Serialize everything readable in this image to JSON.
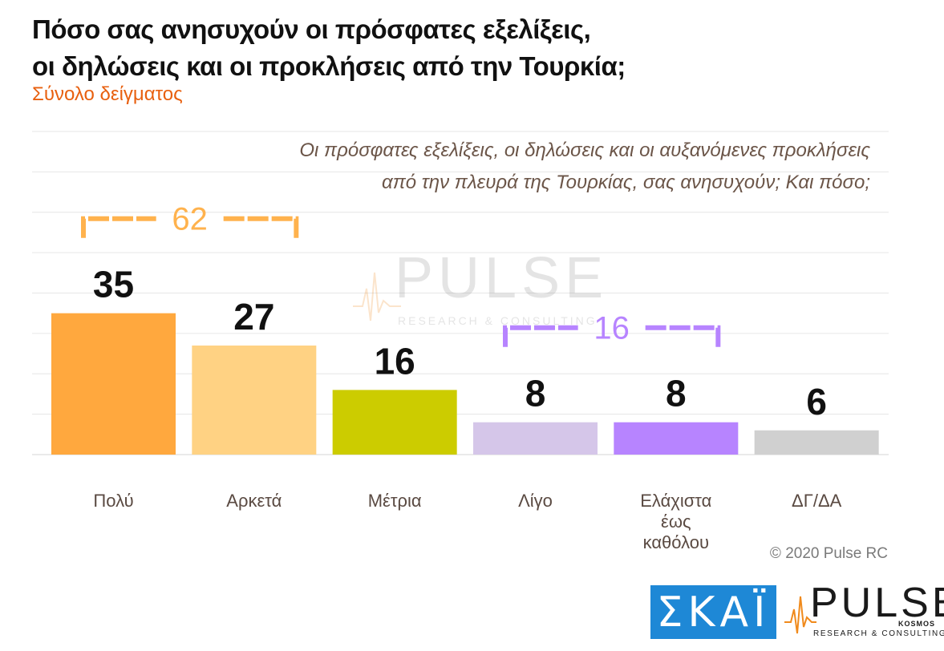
{
  "header": {
    "title_line1": "Πόσο σας ανησυχούν οι πρόσφατες εξελίξεις,",
    "title_line2": "οι δηλώσεις και οι προκλήσεις από την Τουρκία;",
    "subtitle": "Σύνολο δείγματος"
  },
  "question": {
    "line1": "Οι πρόσφατες εξελίξεις, οι δηλώσεις και οι αυξανόμενες προκλήσεις",
    "line2": "από την πλευρά της Τουρκίας, σας ανησυχούν; Και πόσο;"
  },
  "chart_data": {
    "type": "bar",
    "categories": [
      [
        "Πολύ"
      ],
      [
        "Αρκετά"
      ],
      [
        "Μέτρια"
      ],
      [
        "Λίγο"
      ],
      [
        "Ελάχιστα",
        "έως",
        "καθόλου"
      ],
      [
        "ΔΓ/ΔΑ"
      ]
    ],
    "values": [
      35,
      27,
      16,
      8,
      8,
      6
    ],
    "colors": [
      "#ffa83e",
      "#ffd283",
      "#cccc00",
      "#d5c6e9",
      "#b784ff",
      "#d0d0d0"
    ],
    "ylim": [
      0,
      80
    ],
    "grid": true,
    "groups": [
      {
        "value": "62",
        "from": 0,
        "to": 1,
        "color": "#ffb24d"
      },
      {
        "value": "16",
        "from": 3,
        "to": 4,
        "color": "#b784ff"
      }
    ]
  },
  "watermark": {
    "word": "PULSE",
    "kosmos": "KOSMOS",
    "tagline": "RESEARCH & CONSULTING"
  },
  "footer": {
    "copyright": "© 2020 Pulse RC",
    "skai_logo": "ΣΚΑΪ",
    "pulse_logo": "PULSE",
    "pulse_kosmos": "KOSMOS",
    "pulse_tagline": "RESEARCH & CONSULTING"
  }
}
